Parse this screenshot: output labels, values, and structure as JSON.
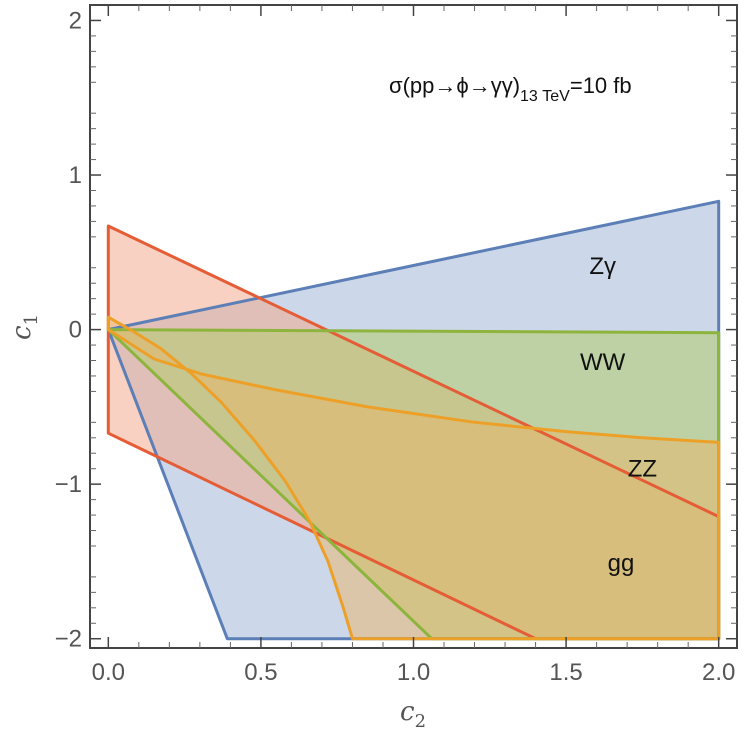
{
  "chart_data": {
    "type": "area",
    "title": "",
    "annotation": {
      "prefix": "σ(pp→ϕ→γγ)",
      "subscript": "13 TeV",
      "suffix": "=10 fb"
    },
    "xlabel": {
      "base": "c",
      "sub": "2"
    },
    "ylabel": {
      "base": "c",
      "sub": "1"
    },
    "xlim": [
      -0.06,
      2.06
    ],
    "ylim": [
      -2.06,
      2.1
    ],
    "xticks": [
      0.0,
      0.5,
      1.0,
      1.5,
      2.0
    ],
    "xtick_labels": [
      "0.0",
      "0.5",
      "1.0",
      "1.5",
      "2.0"
    ],
    "yticks": [
      -2,
      -1,
      0,
      1,
      2
    ],
    "ytick_labels": [
      "−2",
      "−1",
      "0",
      "1",
      "2"
    ],
    "grid": false,
    "regions": [
      {
        "label": "Zγ",
        "stroke": "#5b7fb6",
        "fill": "#aebfdd",
        "fill_opacity": 0.62,
        "label_pos": [
          1.62,
          0.4
        ],
        "boundary": [
          [
            0.0,
            0.0
          ],
          [
            2.0,
            0.83
          ],
          [
            2.0,
            -2.0
          ],
          [
            0.39,
            -2.0
          ],
          [
            0.0,
            0.0
          ]
        ]
      },
      {
        "label": "gg",
        "stroke": "#e45d36",
        "fill": "#f3ab90",
        "fill_opacity": 0.55,
        "label_pos": [
          1.68,
          -1.52
        ],
        "boundary": [
          [
            0.0,
            0.67
          ],
          [
            2.0,
            -1.21
          ],
          [
            2.0,
            -2.0
          ],
          [
            1.4,
            -2.0
          ],
          [
            0.0,
            -0.67
          ],
          [
            0.0,
            0.67
          ]
        ]
      },
      {
        "label": "WW",
        "stroke": "#8db43d",
        "fill": "#b3cc6b",
        "fill_opacity": 0.55,
        "label_pos": [
          1.62,
          -0.22
        ],
        "boundary": [
          [
            0.0,
            0.0
          ],
          [
            2.0,
            -0.02
          ],
          [
            2.0,
            -2.0
          ],
          [
            1.06,
            -2.0
          ],
          [
            0.0,
            0.0
          ]
        ]
      },
      {
        "label": "ZZ",
        "stroke": "#eda028",
        "fill": "#e9b569",
        "fill_opacity": 0.5,
        "label_pos": [
          1.75,
          -0.91
        ],
        "boundary": [
          [
            0.0,
            0.08
          ],
          [
            0.0,
            0.0
          ],
          [
            0.15,
            -0.19
          ],
          [
            0.31,
            -0.29
          ],
          [
            0.55,
            -0.39
          ],
          [
            0.85,
            -0.5
          ],
          [
            1.2,
            -0.6
          ],
          [
            1.5,
            -0.66
          ],
          [
            1.75,
            -0.7
          ],
          [
            2.0,
            -0.73
          ],
          [
            2.0,
            -2.0
          ],
          [
            0.8,
            -2.0
          ],
          [
            0.77,
            -1.8
          ],
          [
            0.72,
            -1.5
          ],
          [
            0.66,
            -1.24
          ],
          [
            0.58,
            -0.98
          ],
          [
            0.48,
            -0.72
          ],
          [
            0.37,
            -0.47
          ],
          [
            0.27,
            -0.28
          ],
          [
            0.17,
            -0.12
          ],
          [
            0.08,
            -0.01
          ],
          [
            0.0,
            0.08
          ]
        ]
      }
    ]
  }
}
